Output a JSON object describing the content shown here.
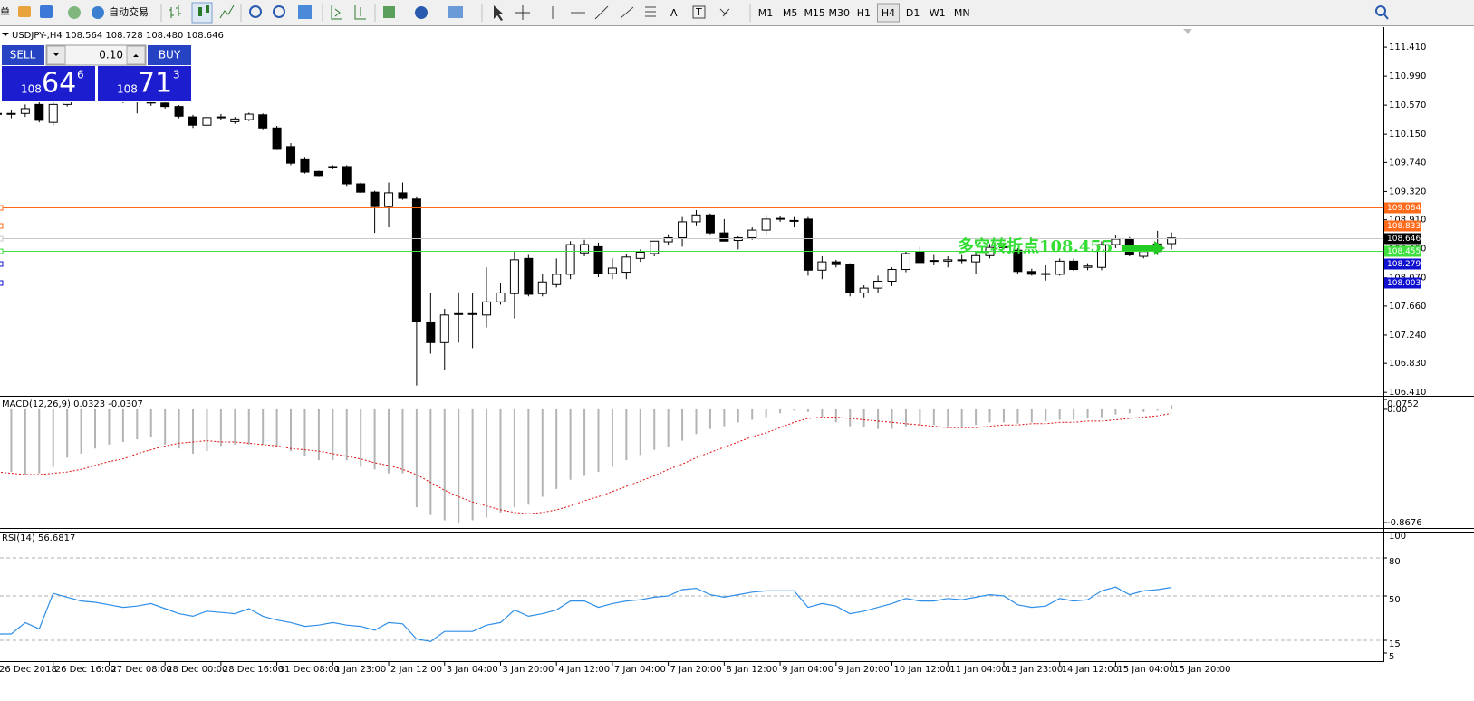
{
  "toolbar": {
    "menu": "单",
    "autotrade": "自动交易",
    "text_tool": "A",
    "label_tool": "T",
    "timeframes": [
      "M1",
      "M5",
      "M15",
      "M30",
      "H1",
      "H4",
      "D1",
      "W1",
      "MN"
    ],
    "active_timeframe": "H4"
  },
  "header": "USDJPY-,H4  108.564 108.728 108.480 108.646",
  "trade_panel": {
    "sell": "SELL",
    "lot": "0.10",
    "buy": "BUY",
    "bid": {
      "big": "108",
      "main": "64",
      "small": "6"
    },
    "ask": {
      "big": "108",
      "main": "71",
      "small": "3"
    }
  },
  "chart_data": [
    {
      "type": "candlestick",
      "categories": [
        "26 Dec 2018",
        null,
        null,
        null,
        "26 Dec 16:00",
        null,
        null,
        null,
        "27 Dec 08:00",
        null,
        null,
        null,
        "28 Dec 00:00",
        null,
        null,
        null,
        "28 Dec 16:00",
        null,
        null,
        null,
        "31 Dec 08:00",
        null,
        null,
        null,
        "1 Jan 23:00",
        null,
        null,
        null,
        "2 Jan 12:00",
        null,
        null,
        null,
        "3 Jan 04:00",
        null,
        null,
        null,
        "3 Jan 20:00",
        null,
        null,
        null,
        "4 Jan 12:00",
        null,
        null,
        null,
        "7 Jan 04:00",
        null,
        null,
        null,
        "7 Jan 20:00",
        null,
        null,
        null,
        "8 Jan 12:00",
        null,
        null,
        null,
        "9 Jan 04:00",
        null,
        null,
        null,
        "9 Jan 20:00",
        null,
        null,
        null,
        "10 Jan 12:00",
        null,
        null,
        null,
        "11 Jan 04:00",
        null,
        null,
        null,
        "13 Jan 23:00",
        null,
        null,
        null,
        "14 Jan 12:00",
        null,
        null,
        null,
        "15 Jan 04:00",
        null,
        null,
        null,
        "15 Jan 20:00"
      ],
      "open": [
        110.44,
        110.45,
        110.45,
        110.58,
        110.32,
        110.58,
        110.75,
        110.85,
        110.78,
        110.7,
        110.66,
        110.62,
        110.6,
        110.55,
        110.4,
        110.28,
        110.39,
        110.33,
        110.36,
        110.43,
        110.24,
        109.97,
        109.78,
        109.61,
        109.67,
        109.68,
        109.43,
        109.31,
        109.1,
        109.3,
        109.21,
        107.43,
        107.13,
        107.55,
        107.55,
        107.53,
        107.72,
        107.84,
        108.35,
        107.84,
        107.97,
        108.12,
        108.43,
        108.52,
        108.13,
        108.15,
        108.35,
        108.42,
        108.59,
        108.65,
        108.88,
        108.98,
        108.72,
        108.61,
        108.65,
        108.76,
        108.93,
        108.9,
        108.92,
        108.18,
        108.3,
        108.26,
        107.85,
        107.92,
        108.02,
        108.19,
        108.45,
        108.32,
        108.31,
        108.33,
        108.3,
        108.39,
        108.52,
        108.47,
        108.16,
        108.12,
        108.12,
        108.31,
        108.22,
        108.22,
        108.55,
        108.63,
        108.38,
        108.45,
        108.564
      ],
      "high": [
        110.48,
        110.5,
        110.58,
        110.64,
        110.62,
        110.8,
        110.9,
        110.92,
        110.85,
        110.75,
        110.7,
        110.68,
        110.62,
        110.57,
        110.43,
        110.45,
        110.44,
        110.4,
        110.46,
        110.45,
        110.27,
        110.02,
        109.82,
        109.62,
        109.7,
        109.7,
        109.45,
        109.33,
        109.45,
        109.45,
        109.25,
        107.85,
        107.62,
        107.86,
        107.85,
        108.22,
        108.0,
        108.45,
        108.4,
        108.12,
        108.35,
        108.6,
        108.62,
        108.58,
        108.35,
        108.42,
        108.48,
        108.6,
        108.7,
        108.95,
        109.05,
        109.0,
        108.92,
        108.67,
        108.8,
        108.98,
        108.97,
        108.95,
        108.95,
        108.38,
        108.33,
        108.28,
        107.96,
        108.1,
        108.22,
        108.45,
        108.52,
        108.4,
        108.38,
        108.4,
        108.45,
        108.56,
        108.58,
        108.5,
        108.2,
        108.25,
        108.35,
        108.35,
        108.28,
        108.6,
        108.68,
        108.66,
        108.5,
        108.75,
        108.728
      ],
      "low": [
        110.4,
        110.38,
        110.4,
        110.32,
        110.28,
        110.55,
        110.7,
        110.72,
        110.65,
        110.6,
        110.45,
        110.56,
        110.52,
        110.38,
        110.24,
        110.25,
        110.36,
        110.3,
        110.34,
        110.22,
        109.92,
        109.7,
        109.58,
        109.54,
        109.64,
        109.4,
        109.3,
        108.72,
        108.8,
        109.2,
        106.51,
        106.97,
        106.74,
        107.13,
        107.05,
        107.35,
        107.68,
        107.48,
        107.8,
        107.8,
        107.93,
        108.05,
        108.38,
        108.08,
        108.05,
        108.05,
        108.3,
        108.38,
        108.55,
        108.52,
        108.83,
        108.7,
        108.6,
        108.48,
        108.62,
        108.7,
        108.88,
        108.8,
        108.1,
        108.05,
        108.22,
        107.8,
        107.78,
        107.85,
        107.95,
        108.15,
        108.28,
        108.25,
        108.22,
        108.28,
        108.12,
        108.35,
        108.48,
        108.12,
        108.1,
        108.03,
        108.1,
        108.17,
        108.18,
        108.18,
        108.5,
        108.38,
        108.35,
        108.4,
        108.48
      ],
      "close": [
        110.45,
        110.45,
        110.52,
        110.35,
        110.58,
        110.75,
        110.85,
        110.78,
        110.7,
        110.66,
        110.62,
        110.6,
        110.55,
        110.41,
        110.28,
        110.39,
        110.4,
        110.37,
        110.44,
        110.24,
        109.93,
        109.73,
        109.6,
        109.55,
        109.68,
        109.43,
        109.31,
        109.1,
        109.3,
        109.22,
        107.43,
        107.13,
        107.53,
        107.55,
        107.55,
        107.72,
        107.85,
        108.33,
        107.83,
        108.01,
        108.12,
        108.55,
        108.55,
        108.13,
        108.21,
        108.37,
        108.44,
        108.6,
        108.65,
        108.88,
        108.98,
        108.72,
        108.6,
        108.65,
        108.76,
        108.92,
        108.93,
        108.9,
        108.18,
        108.3,
        108.26,
        107.85,
        107.92,
        108.02,
        108.19,
        108.42,
        108.29,
        108.31,
        108.33,
        108.33,
        108.39,
        108.51,
        108.52,
        108.16,
        108.12,
        108.13,
        108.31,
        108.19,
        108.24,
        108.55,
        108.63,
        108.4,
        108.45,
        108.56,
        108.646
      ],
      "up_color": "#ffffff",
      "down_color": "#000000",
      "wick_color": "#000000",
      "ylim": [
        106.36,
        111.7
      ],
      "yticks": [
        {
          "value": 111.41,
          "label": "111.410"
        },
        {
          "value": 110.99,
          "label": "110.990"
        },
        {
          "value": 110.57,
          "label": "110.570"
        },
        {
          "value": 110.15,
          "label": "110.150"
        },
        {
          "value": 109.74,
          "label": "109.740"
        },
        {
          "value": 109.32,
          "label": "109.320"
        },
        {
          "value": 108.91,
          "label": "108.910"
        },
        {
          "value": 108.49,
          "label": "108.490"
        },
        {
          "value": 108.07,
          "label": "108.070"
        },
        {
          "value": 107.66,
          "label": "107.660"
        },
        {
          "value": 107.24,
          "label": "107.240"
        },
        {
          "value": 106.83,
          "label": "106.830"
        },
        {
          "value": 106.41,
          "label": "106.410"
        }
      ],
      "levels": [
        {
          "value": 109.084,
          "color": "#ff6a1a",
          "box": "#ff6a1a"
        },
        {
          "value": 108.833,
          "color": "#ff6a1a",
          "box": "#ff6a1a"
        },
        {
          "value": 108.646,
          "color": "#c8c8c8",
          "box": "#000000"
        },
        {
          "value": 108.455,
          "color": "#3ee03e",
          "box": "#3ee03e"
        },
        {
          "value": 108.279,
          "color": "#1010d0",
          "box": "#1010d0"
        },
        {
          "value": 108.003,
          "color": "#1010d0",
          "box": "#1010d0"
        }
      ],
      "annotation": "多空转折点108.455"
    },
    {
      "type": "macd",
      "title": "MACD(12,26,9) 0.0323 -0.0307",
      "histogram": {
        "color": "#b4b4b4",
        "values": [
          -0.47,
          -0.48,
          -0.5,
          -0.49,
          -0.44,
          -0.37,
          -0.34,
          -0.3,
          -0.27,
          -0.25,
          -0.23,
          -0.21,
          -0.27,
          -0.3,
          -0.34,
          -0.32,
          -0.28,
          -0.27,
          -0.27,
          -0.27,
          -0.29,
          -0.32,
          -0.36,
          -0.39,
          -0.39,
          -0.39,
          -0.44,
          -0.46,
          -0.49,
          -0.49,
          -0.75,
          -0.81,
          -0.85,
          -0.87,
          -0.85,
          -0.83,
          -0.79,
          -0.75,
          -0.73,
          -0.67,
          -0.61,
          -0.54,
          -0.51,
          -0.48,
          -0.44,
          -0.39,
          -0.35,
          -0.31,
          -0.29,
          -0.24,
          -0.19,
          -0.15,
          -0.13,
          -0.1,
          -0.08,
          -0.06,
          -0.03,
          -0.01,
          -0.02,
          -0.06,
          -0.1,
          -0.13,
          -0.14,
          -0.15,
          -0.15,
          -0.13,
          -0.12,
          -0.12,
          -0.13,
          -0.14,
          -0.12,
          -0.1,
          -0.1,
          -0.11,
          -0.1,
          -0.09,
          -0.08,
          -0.08,
          -0.07,
          -0.06,
          -0.04,
          -0.03,
          -0.02,
          -0.01,
          0.0323
        ]
      },
      "signal": {
        "color": "#e01010",
        "values": [
          -0.48,
          -0.49,
          -0.5,
          -0.5,
          -0.49,
          -0.48,
          -0.46,
          -0.43,
          -0.4,
          -0.38,
          -0.34,
          -0.31,
          -0.28,
          -0.26,
          -0.25,
          -0.24,
          -0.25,
          -0.25,
          -0.26,
          -0.27,
          -0.28,
          -0.3,
          -0.31,
          -0.32,
          -0.34,
          -0.36,
          -0.38,
          -0.41,
          -0.43,
          -0.46,
          -0.5,
          -0.56,
          -0.62,
          -0.67,
          -0.71,
          -0.74,
          -0.77,
          -0.79,
          -0.8,
          -0.79,
          -0.77,
          -0.74,
          -0.7,
          -0.67,
          -0.63,
          -0.59,
          -0.55,
          -0.51,
          -0.46,
          -0.42,
          -0.37,
          -0.33,
          -0.29,
          -0.25,
          -0.21,
          -0.18,
          -0.14,
          -0.1,
          -0.07,
          -0.06,
          -0.06,
          -0.07,
          -0.08,
          -0.09,
          -0.1,
          -0.11,
          -0.12,
          -0.13,
          -0.14,
          -0.14,
          -0.14,
          -0.13,
          -0.12,
          -0.12,
          -0.11,
          -0.11,
          -0.1,
          -0.1,
          -0.09,
          -0.09,
          -0.08,
          -0.07,
          -0.06,
          -0.05,
          -0.0307
        ]
      },
      "ylim": [
        -0.909,
        0.0758
      ],
      "yticks": [
        0.0752,
        {
          "value": 0,
          "label": "0.00"
        },
        -0.8676
      ]
    },
    {
      "type": "line",
      "title": "RSI(14) 56.6817",
      "color": "#2f8fe8",
      "values": [
        20,
        20,
        29,
        24,
        52,
        49,
        46,
        45,
        43,
        41,
        42,
        44,
        40,
        36,
        34,
        38,
        37,
        36,
        40,
        34,
        31,
        29,
        26,
        27,
        29,
        27,
        26,
        23,
        29,
        28,
        16,
        14,
        22,
        22,
        22,
        27,
        29,
        39,
        34,
        36,
        39,
        46,
        46,
        41,
        44,
        46,
        47,
        49,
        50,
        55,
        56,
        51,
        49,
        51,
        53,
        54,
        54,
        54,
        41,
        44,
        42,
        36,
        38,
        41,
        44,
        48,
        46,
        46,
        48,
        47,
        49,
        51,
        50,
        43,
        41,
        42,
        48,
        46,
        47,
        54,
        57,
        51,
        54,
        55,
        56.6817
      ],
      "ylim": [
        0,
        100
      ],
      "yticks": [
        100,
        80,
        50,
        15,
        5
      ],
      "levels": [
        80,
        50,
        15
      ]
    }
  ]
}
